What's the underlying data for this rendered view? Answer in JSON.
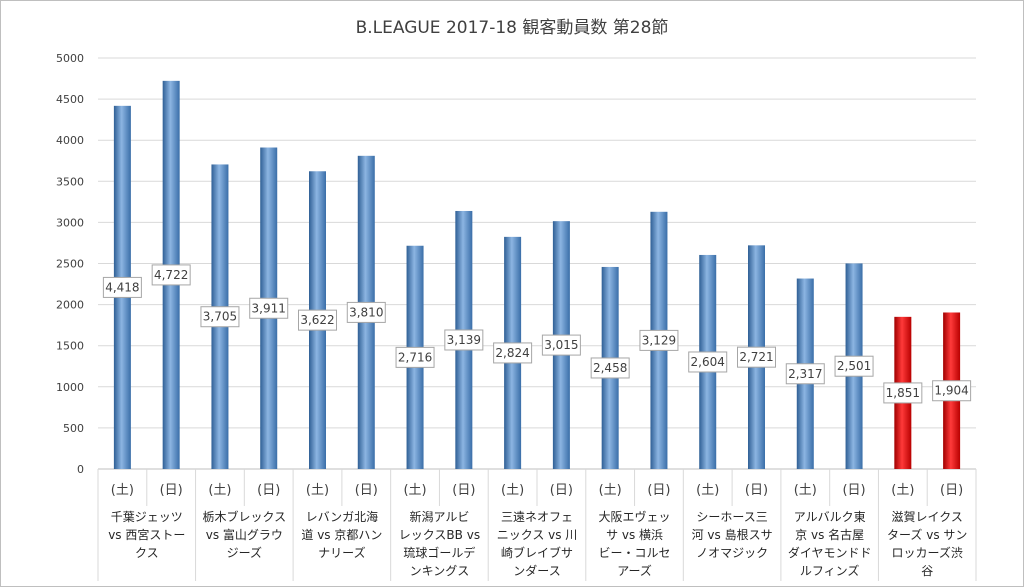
{
  "chart_data": {
    "type": "bar",
    "title": "B.LEAGUE 2017-18 観客動員数 第28節",
    "ylim": [
      0,
      5000
    ],
    "yticks": [
      0,
      500,
      1000,
      1500,
      2000,
      2500,
      3000,
      3500,
      4000,
      4500,
      5000
    ],
    "grid": true,
    "colors": {
      "default": "#4f81bd",
      "highlight": "#e00000"
    },
    "matchups": [
      {
        "lines": [
          "千葉ジェッツ",
          "vs 西宮ストー",
          "クス"
        ]
      },
      {
        "lines": [
          "栃木ブレックス",
          "vs 富山グラウ",
          "ジーズ"
        ]
      },
      {
        "lines": [
          "レバンガ北海",
          "道 vs 京都ハン",
          "ナリーズ"
        ]
      },
      {
        "lines": [
          "新潟アルビ",
          "レックスBB vs",
          "琉球ゴールデ",
          "ンキングス"
        ]
      },
      {
        "lines": [
          "三遠ネオフェ",
          "ニックス vs 川",
          "崎ブレイブサ",
          "ンダース"
        ]
      },
      {
        "lines": [
          "大阪エヴェッ",
          "サ vs 横浜",
          "ビー・コルセ",
          "アーズ"
        ]
      },
      {
        "lines": [
          "シーホース三",
          "河 vs 島根スサ",
          "ノオマジック"
        ]
      },
      {
        "lines": [
          "アルバルク東",
          "京 vs 名古屋",
          "ダイヤモンドド",
          "ルフィンズ"
        ]
      },
      {
        "lines": [
          "滋賀レイクス",
          "ターズ vs サン",
          "ロッカーズ渋",
          "谷"
        ]
      }
    ],
    "bars": [
      {
        "day": "(土)",
        "value": 4418,
        "label": "4,418",
        "highlight": false
      },
      {
        "day": "(日)",
        "value": 4722,
        "label": "4,722",
        "highlight": false
      },
      {
        "day": "(土)",
        "value": 3705,
        "label": "3,705",
        "highlight": false
      },
      {
        "day": "(日)",
        "value": 3911,
        "label": "3,911",
        "highlight": false
      },
      {
        "day": "(土)",
        "value": 3622,
        "label": "3,622",
        "highlight": false
      },
      {
        "day": "(日)",
        "value": 3810,
        "label": "3,810",
        "highlight": false
      },
      {
        "day": "(土)",
        "value": 2716,
        "label": "2,716",
        "highlight": false
      },
      {
        "day": "(日)",
        "value": 3139,
        "label": "3,139",
        "highlight": false
      },
      {
        "day": "(土)",
        "value": 2824,
        "label": "2,824",
        "highlight": false
      },
      {
        "day": "(日)",
        "value": 3015,
        "label": "3,015",
        "highlight": false
      },
      {
        "day": "(土)",
        "value": 2458,
        "label": "2,458",
        "highlight": false
      },
      {
        "day": "(日)",
        "value": 3129,
        "label": "3,129",
        "highlight": false
      },
      {
        "day": "(土)",
        "value": 2604,
        "label": "2,604",
        "highlight": false
      },
      {
        "day": "(日)",
        "value": 2721,
        "label": "2,721",
        "highlight": false
      },
      {
        "day": "(土)",
        "value": 2317,
        "label": "2,317",
        "highlight": false
      },
      {
        "day": "(日)",
        "value": 2501,
        "label": "2,501",
        "highlight": false
      },
      {
        "day": "(土)",
        "value": 1851,
        "label": "1,851",
        "highlight": true
      },
      {
        "day": "(日)",
        "value": 1904,
        "label": "1,904",
        "highlight": true
      }
    ]
  }
}
